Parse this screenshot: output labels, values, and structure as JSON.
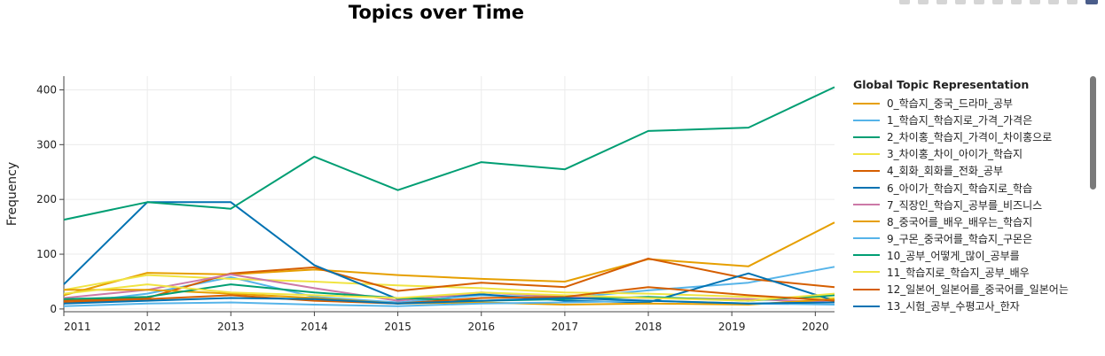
{
  "chart_data": {
    "type": "line",
    "title": "Topics over Time",
    "xlabel": "",
    "ylabel": "Frequency",
    "xlim": [
      2011,
      2020.23
    ],
    "ylim": [
      -5,
      425
    ],
    "x_ticks": [
      "2011",
      "2012",
      "2013",
      "2014",
      "2015",
      "2016",
      "2017",
      "2018",
      "2019",
      "2020"
    ],
    "y_ticks": [
      0,
      100,
      200,
      300,
      400
    ],
    "grid": true,
    "legend_title": "Global Topic Representation",
    "legend_position": "right",
    "series": [
      {
        "name": "0_학습지_중국_드라마_공부",
        "color": "#E69F00",
        "x": [
          2011,
          2012,
          2013,
          2014,
          2015,
          2016,
          2017,
          2018,
          2019.2,
          2020.23
        ],
        "y": [
          25,
          66,
          63,
          72,
          62,
          55,
          50,
          91,
          78,
          158
        ]
      },
      {
        "name": "1_학습지_학습지로_가격_가격은",
        "color": "#56B4E9",
        "x": [
          2011,
          2012,
          2013,
          2014,
          2015,
          2016,
          2017,
          2018,
          2019.2,
          2020.23
        ],
        "y": [
          10,
          28,
          58,
          22,
          12,
          25,
          20,
          34,
          48,
          77
        ]
      },
      {
        "name": "2_차이홍_학습지_가격이_차이홍으로",
        "color": "#009E73",
        "x": [
          2011,
          2012,
          2013,
          2014,
          2015,
          2016,
          2017,
          2018,
          2019.2,
          2020.23
        ],
        "y": [
          163,
          195,
          183,
          278,
          217,
          268,
          255,
          325,
          331,
          405
        ]
      },
      {
        "name": "3_차이홍_차이_아이가_학습지",
        "color": "#F0E442",
        "x": [
          2011,
          2012,
          2013,
          2014,
          2015,
          2016,
          2017,
          2018,
          2019.2,
          2020.23
        ],
        "y": [
          35,
          62,
          55,
          50,
          43,
          38,
          30,
          28,
          22,
          20
        ]
      },
      {
        "name": "4_회화_회화를_전화_공부",
        "color": "#D55E00",
        "x": [
          2011,
          2012,
          2013,
          2014,
          2015,
          2016,
          2017,
          2018,
          2019.2,
          2020.23
        ],
        "y": [
          15,
          20,
          65,
          76,
          33,
          48,
          40,
          92,
          55,
          40
        ]
      },
      {
        "name": "6_아이가_학습지_학습지로_학습",
        "color": "#0072B2",
        "x": [
          2011,
          2012,
          2013,
          2014,
          2015,
          2016,
          2017,
          2018,
          2019.2,
          2020.23
        ],
        "y": [
          45,
          195,
          195,
          80,
          18,
          27,
          15,
          12,
          65,
          15
        ]
      },
      {
        "name": "7_직장인_학습지_공부를_비즈니스",
        "color": "#CC79A7",
        "x": [
          2011,
          2012,
          2013,
          2014,
          2015,
          2016,
          2017,
          2018,
          2019.2,
          2020.23
        ],
        "y": [
          20,
          35,
          63,
          38,
          15,
          30,
          22,
          20,
          18,
          12
        ]
      },
      {
        "name": "8_중국어를_배우_배우는_학습지",
        "color": "#E69F00",
        "x": [
          2011,
          2012,
          2013,
          2014,
          2015,
          2016,
          2017,
          2018,
          2019.2,
          2020.23
        ],
        "y": [
          35,
          35,
          28,
          20,
          10,
          12,
          8,
          10,
          8,
          18
        ]
      },
      {
        "name": "9_구몬_중국어를_학습지_구몬은",
        "color": "#56B4E9",
        "x": [
          2011,
          2012,
          2013,
          2014,
          2015,
          2016,
          2017,
          2018,
          2019.2,
          2020.23
        ],
        "y": [
          5,
          10,
          12,
          8,
          5,
          10,
          12,
          15,
          10,
          8
        ]
      },
      {
        "name": "10_공부_어떻게_많이_공부를",
        "color": "#009E73",
        "x": [
          2011,
          2012,
          2013,
          2014,
          2015,
          2016,
          2017,
          2018,
          2019.2,
          2020.23
        ],
        "y": [
          18,
          22,
          45,
          30,
          20,
          15,
          18,
          22,
          15,
          25
        ]
      },
      {
        "name": "11_학습지로_학습지_공부_배우",
        "color": "#F0E442",
        "x": [
          2011,
          2012,
          2013,
          2014,
          2015,
          2016,
          2017,
          2018,
          2019.2,
          2020.23
        ],
        "y": [
          28,
          45,
          30,
          25,
          20,
          30,
          25,
          20,
          15,
          28
        ]
      },
      {
        "name": "12_일본어_일본어를_중국어를_일본어는",
        "color": "#D55E00",
        "x": [
          2011,
          2012,
          2013,
          2014,
          2015,
          2016,
          2017,
          2018,
          2019.2,
          2020.23
        ],
        "y": [
          12,
          18,
          25,
          15,
          10,
          20,
          22,
          40,
          25,
          15
        ]
      },
      {
        "name": "13_시험_공부_수평고사_한자",
        "color": "#0072B2",
        "x": [
          2011,
          2012,
          2013,
          2014,
          2015,
          2016,
          2017,
          2018,
          2019.2,
          2020.23
        ],
        "y": [
          10,
          15,
          20,
          18,
          10,
          15,
          20,
          15,
          10,
          12
        ]
      }
    ]
  }
}
